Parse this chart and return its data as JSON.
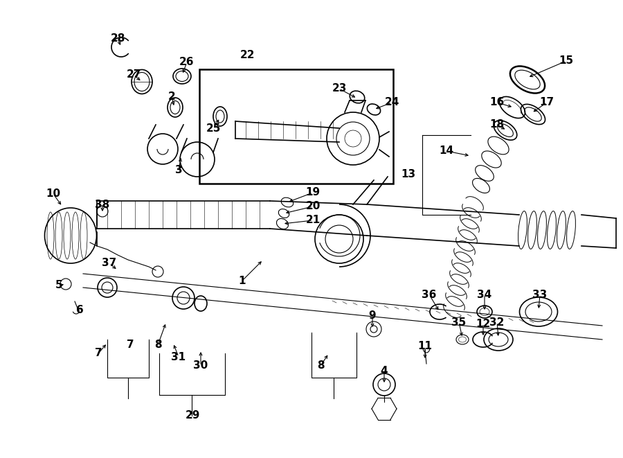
{
  "bg_color": "#ffffff",
  "line_color": "#000000",
  "fig_width": 9.0,
  "fig_height": 6.61,
  "dpi": 100,
  "label_fs": 11,
  "small_fs": 9
}
